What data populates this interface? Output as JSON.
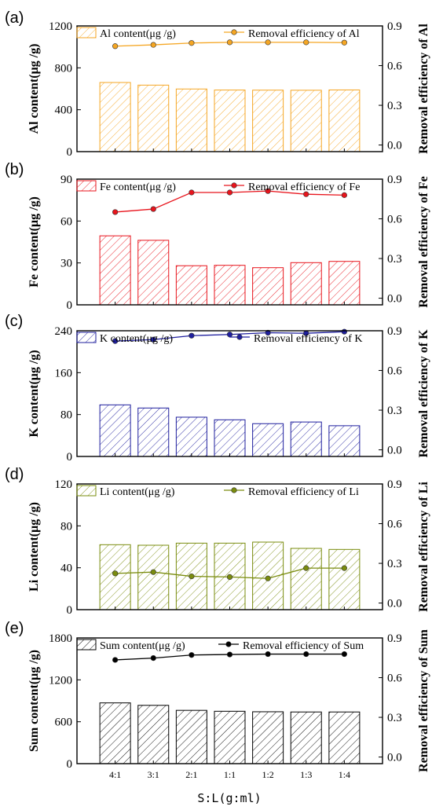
{
  "chart_data": {
    "type": "bar",
    "xlabel": "S:L(g:ml)",
    "categories": [
      "4:1",
      "3:1",
      "2:1",
      "1:1",
      "1:2",
      "1:3",
      "1:4"
    ],
    "panels": [
      {
        "panel_label": "(a)",
        "ylabel_left": "Al content(μg /g)",
        "ylabel_right": "Removal efficiency of Al",
        "ylim_left": [
          0,
          1200
        ],
        "yticks_left": [
          0,
          400,
          800,
          1200
        ],
        "ylim_right": [
          -0.05,
          0.9
        ],
        "yticks_right": [
          0.0,
          0.3,
          0.6,
          0.9
        ],
        "color": "#f5a623",
        "bar_series": {
          "name": "Al content(μg /g)",
          "values": [
            660,
            635,
            598,
            588,
            587,
            586,
            589
          ]
        },
        "line_series": {
          "name": "Removal efficiency of Al",
          "values": [
            0.747,
            0.757,
            0.771,
            0.776,
            0.776,
            0.776,
            0.774
          ]
        }
      },
      {
        "panel_label": "(b)",
        "ylabel_left": "Fe content(μg /g)",
        "ylabel_right": "Removal efficiency of Fe",
        "ylim_left": [
          0,
          90
        ],
        "yticks_left": [
          0,
          30,
          60,
          90
        ],
        "ylim_right": [
          -0.05,
          0.9
        ],
        "yticks_right": [
          0.0,
          0.3,
          0.6,
          0.9
        ],
        "color": "#e8141c",
        "bar_series": {
          "name": "Fe content(μg /g)",
          "values": [
            49.4,
            46.2,
            28.0,
            28.3,
            26.6,
            30.2,
            31.1
          ]
        },
        "line_series": {
          "name": "Removal efficiency of Fe",
          "values": [
            0.651,
            0.674,
            0.799,
            0.799,
            0.81,
            0.786,
            0.779
          ]
        }
      },
      {
        "panel_label": "(c)",
        "ylabel_left": "K content(μg /g)",
        "ylabel_right": "Removal efficiency of K",
        "ylim_left": [
          0,
          240
        ],
        "yticks_left": [
          0,
          80,
          160,
          240
        ],
        "ylim_right": [
          -0.05,
          0.9
        ],
        "yticks_right": [
          0.0,
          0.3,
          0.6,
          0.9
        ],
        "color": "#1f1f9e",
        "bar_series": {
          "name": "K content(μg /g)",
          "values": [
            98.5,
            92.5,
            75.0,
            70.0,
            62.6,
            65.8,
            58.7
          ]
        },
        "line_series": {
          "name": "Removal efficiency of K",
          "values": [
            0.822,
            0.833,
            0.863,
            0.872,
            0.885,
            0.881,
            0.893
          ]
        }
      },
      {
        "panel_label": "(d)",
        "ylabel_left": "Li content(μg /g)",
        "ylabel_right": "Removal efficiency of Li",
        "ylim_left": [
          0,
          120
        ],
        "yticks_left": [
          0,
          40,
          80,
          120
        ],
        "ylim_right": [
          -0.05,
          0.9
        ],
        "yticks_right": [
          0.0,
          0.3,
          0.6,
          0.9
        ],
        "color": "#7a8c0e",
        "bar_series": {
          "name": "Li content(μg /g)",
          "values": [
            62,
            61.5,
            63.5,
            63.5,
            64.5,
            58.5,
            57.5
          ]
        },
        "line_series": {
          "name": "Removal efficiency of Li",
          "values": [
            0.224,
            0.234,
            0.202,
            0.197,
            0.186,
            0.264,
            0.264
          ]
        }
      },
      {
        "panel_label": "(e)",
        "ylabel_left": "Sum content(μg /g)",
        "ylabel_right": "Removal efficiency of Sum",
        "ylim_left": [
          0,
          1800
        ],
        "yticks_left": [
          0,
          600,
          1200,
          1800
        ],
        "ylim_right": [
          -0.05,
          0.9
        ],
        "yticks_right": [
          0.0,
          0.3,
          0.6,
          0.9
        ],
        "color": "#000000",
        "bar_series": {
          "name": "Sum content(μg /g)",
          "values": [
            870,
            835,
            763,
            750,
            743,
            740,
            740
          ]
        },
        "line_series": {
          "name": "Removal efficiency of Sum",
          "values": [
            0.734,
            0.748,
            0.771,
            0.775,
            0.778,
            0.778,
            0.778
          ]
        }
      }
    ]
  }
}
